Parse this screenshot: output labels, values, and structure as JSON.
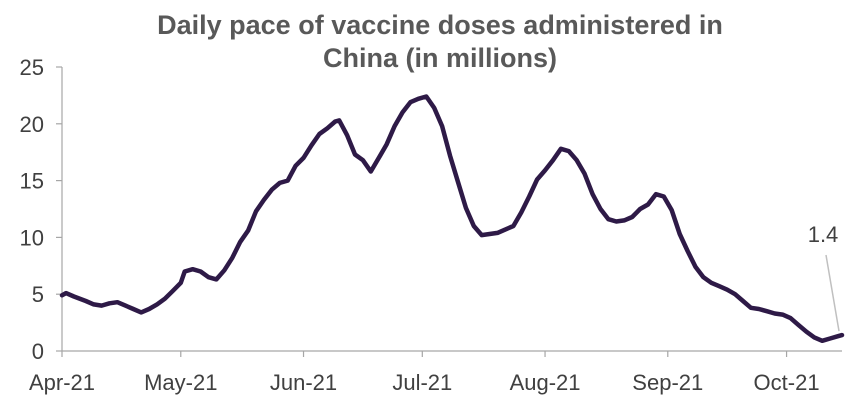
{
  "chart_data": {
    "type": "line",
    "title_lines": [
      "Daily pace of vaccine doses administered in",
      "China (in millions)"
    ],
    "xlabel": "",
    "ylabel": "",
    "ylim": [
      0,
      25
    ],
    "yticks": [
      0,
      5,
      10,
      15,
      20,
      25
    ],
    "x_tick_labels": [
      "Apr-21",
      "May-21",
      "Jun-21",
      "Jul-21",
      "Aug-21",
      "Sep-21",
      "Oct-21"
    ],
    "x_tick_days": [
      0,
      30,
      61,
      91,
      122,
      153,
      183
    ],
    "x_range_days": [
      0,
      197
    ],
    "grid": false,
    "legend": "none",
    "annotation": {
      "label": "1.4",
      "day": 197,
      "value": 1.4
    },
    "series": [
      {
        "color": "#2e1a47",
        "points": [
          [
            0,
            4.9
          ],
          [
            1,
            5.1
          ],
          [
            3,
            4.8
          ],
          [
            6,
            4.4
          ],
          [
            8,
            4.1
          ],
          [
            10,
            4.0
          ],
          [
            12,
            4.2
          ],
          [
            14,
            4.3
          ],
          [
            16,
            4.0
          ],
          [
            18,
            3.7
          ],
          [
            20,
            3.4
          ],
          [
            22,
            3.7
          ],
          [
            24,
            4.1
          ],
          [
            26,
            4.6
          ],
          [
            28,
            5.3
          ],
          [
            30,
            6.0
          ],
          [
            31,
            7.0
          ],
          [
            33,
            7.2
          ],
          [
            35,
            7.0
          ],
          [
            37,
            6.5
          ],
          [
            39,
            6.3
          ],
          [
            41,
            7.1
          ],
          [
            43,
            8.2
          ],
          [
            45,
            9.6
          ],
          [
            47,
            10.6
          ],
          [
            49,
            12.3
          ],
          [
            51,
            13.3
          ],
          [
            53,
            14.2
          ],
          [
            55,
            14.8
          ],
          [
            57,
            15.0
          ],
          [
            59,
            16.3
          ],
          [
            61,
            17.0
          ],
          [
            63,
            18.1
          ],
          [
            65,
            19.1
          ],
          [
            67,
            19.6
          ],
          [
            69,
            20.2
          ],
          [
            70,
            20.3
          ],
          [
            72,
            19.0
          ],
          [
            74,
            17.3
          ],
          [
            76,
            16.8
          ],
          [
            78,
            15.8
          ],
          [
            80,
            17.0
          ],
          [
            82,
            18.2
          ],
          [
            84,
            19.8
          ],
          [
            86,
            21.0
          ],
          [
            88,
            21.9
          ],
          [
            90,
            22.2
          ],
          [
            92,
            22.4
          ],
          [
            94,
            21.4
          ],
          [
            96,
            19.8
          ],
          [
            98,
            17.2
          ],
          [
            100,
            14.9
          ],
          [
            102,
            12.6
          ],
          [
            104,
            11.0
          ],
          [
            106,
            10.2
          ],
          [
            108,
            10.3
          ],
          [
            110,
            10.4
          ],
          [
            112,
            10.7
          ],
          [
            114,
            11.0
          ],
          [
            116,
            12.2
          ],
          [
            118,
            13.6
          ],
          [
            120,
            15.1
          ],
          [
            122,
            15.9
          ],
          [
            124,
            16.8
          ],
          [
            126,
            17.8
          ],
          [
            128,
            17.6
          ],
          [
            130,
            16.8
          ],
          [
            132,
            15.6
          ],
          [
            134,
            13.8
          ],
          [
            136,
            12.5
          ],
          [
            138,
            11.6
          ],
          [
            140,
            11.4
          ],
          [
            142,
            11.5
          ],
          [
            144,
            11.8
          ],
          [
            146,
            12.5
          ],
          [
            148,
            12.9
          ],
          [
            150,
            13.8
          ],
          [
            152,
            13.6
          ],
          [
            154,
            12.4
          ],
          [
            156,
            10.3
          ],
          [
            158,
            8.8
          ],
          [
            160,
            7.4
          ],
          [
            162,
            6.5
          ],
          [
            164,
            6.0
          ],
          [
            166,
            5.7
          ],
          [
            168,
            5.4
          ],
          [
            170,
            5.0
          ],
          [
            172,
            4.4
          ],
          [
            174,
            3.8
          ],
          [
            176,
            3.7
          ],
          [
            178,
            3.5
          ],
          [
            180,
            3.3
          ],
          [
            182,
            3.2
          ],
          [
            184,
            2.9
          ],
          [
            186,
            2.3
          ],
          [
            188,
            1.7
          ],
          [
            190,
            1.2
          ],
          [
            192,
            0.9
          ],
          [
            194,
            1.1
          ],
          [
            196,
            1.3
          ],
          [
            197,
            1.4
          ]
        ]
      }
    ]
  }
}
